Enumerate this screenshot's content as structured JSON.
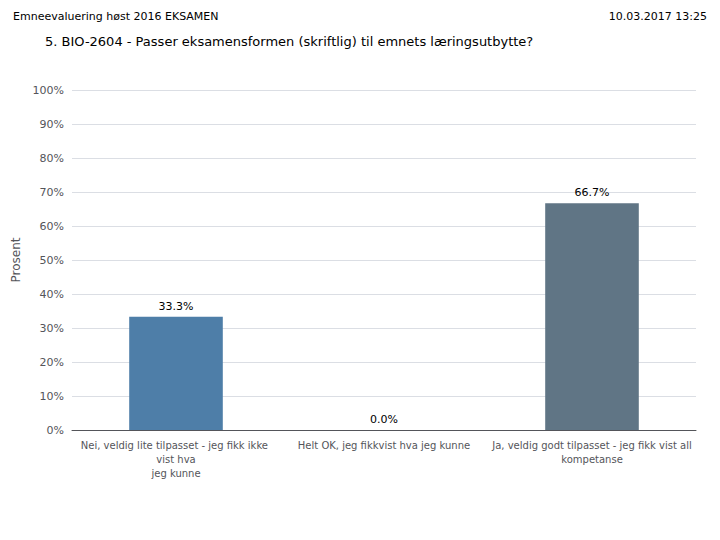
{
  "chart_data": {
    "type": "bar",
    "title": "5. BIO-2604 - Passer eksamensformen (skriftlig) til emnets læringsutbytte?",
    "annotations": [
      "Emneevaluering høst 2016 EKSAMEN",
      "10.03.2017 13:25"
    ],
    "ylabel": "Prosent",
    "categories": [
      "Nei, veldig lite tilpasset - jeg fikk ikke vist hva\njeg kunne",
      "Helt OK, jeg fikkvist hva jeg kunne",
      "Ja, veldig godt tilpasset - jeg fikk vist all\nkompetanse"
    ],
    "values": [
      33.3,
      0.0,
      66.7
    ],
    "value_labels": [
      "33.3%",
      "0.0%",
      "66.7%"
    ],
    "colors": [
      "#4e7ea8",
      "#4e7ea8",
      "#607585"
    ],
    "ylim": [
      0,
      100
    ],
    "yticks": [
      {
        "value": 0,
        "label": "0%"
      },
      {
        "value": 10,
        "label": "10%"
      },
      {
        "value": 20,
        "label": "20%"
      },
      {
        "value": 30,
        "label": "30%"
      },
      {
        "value": 40,
        "label": "40%"
      },
      {
        "value": 50,
        "label": "50%"
      },
      {
        "value": 60,
        "label": "60%"
      },
      {
        "value": 70,
        "label": "70%"
      },
      {
        "value": 80,
        "label": "80%"
      },
      {
        "value": 90,
        "label": "90%"
      },
      {
        "value": 100,
        "label": "100%"
      }
    ],
    "grid": true,
    "data_labels": true
  }
}
